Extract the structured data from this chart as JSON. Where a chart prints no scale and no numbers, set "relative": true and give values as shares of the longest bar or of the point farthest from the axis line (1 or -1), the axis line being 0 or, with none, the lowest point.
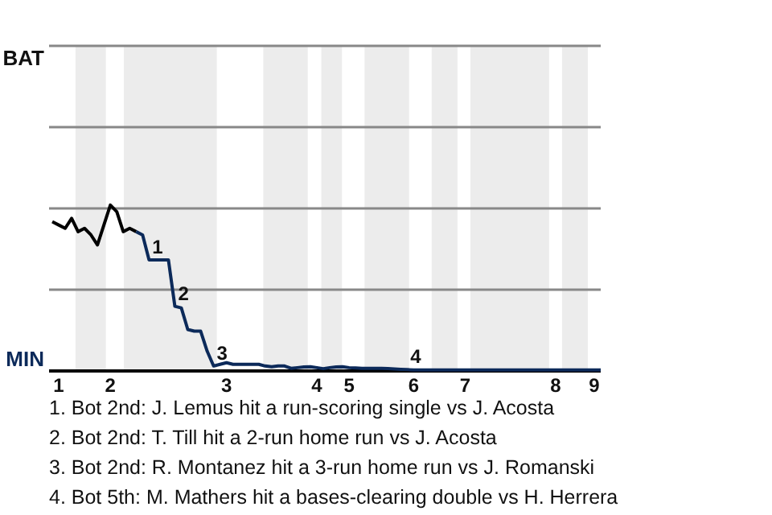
{
  "chart_data": {
    "type": "line",
    "relative": true,
    "categories": [
      null,
      "1",
      null,
      null,
      null,
      null,
      null,
      null,
      null,
      "2",
      null,
      null,
      null,
      null,
      null,
      null,
      null,
      null,
      null,
      null,
      null,
      null,
      null,
      null,
      null,
      null,
      null,
      "3",
      null,
      null,
      null,
      null,
      null,
      null,
      null,
      null,
      null,
      null,
      null,
      null,
      null,
      "4",
      null,
      null,
      null,
      null,
      "5",
      null,
      null,
      null,
      null,
      null,
      null,
      null,
      null,
      null,
      "6",
      null,
      null,
      null,
      null,
      null,
      null,
      null,
      "7",
      null,
      null,
      null,
      null,
      null,
      null,
      null,
      null,
      null,
      null,
      null,
      null,
      null,
      "8",
      null,
      null,
      null,
      null,
      null,
      "9",
      null
    ],
    "grid": false,
    "marker": "none",
    "line_style": "solid",
    "series": [
      {
        "color": "#000000",
        "values": [
          0.9,
          0.88,
          0.86,
          0.92,
          0.84,
          0.86,
          0.82,
          0.76,
          0.88,
          1,
          0.96,
          0.84,
          0.86,
          0.84,
          null,
          null,
          null,
          null,
          null,
          null,
          null,
          null,
          null,
          null,
          null,
          null,
          null,
          null,
          null,
          null,
          null,
          null,
          null,
          null,
          null,
          null,
          null,
          null,
          null,
          null,
          null,
          null,
          null,
          null,
          null,
          null,
          null,
          null,
          null,
          null,
          null,
          null,
          null,
          null,
          null,
          null,
          null,
          null,
          null,
          null,
          null,
          null,
          null,
          null,
          null,
          null,
          null,
          null,
          null,
          null,
          null,
          null,
          null,
          null,
          null,
          null,
          null,
          null,
          null,
          null,
          null,
          null,
          null,
          null,
          null,
          null
        ]
      },
      {
        "color": "#0c2a5a",
        "values": [
          null,
          null,
          null,
          null,
          null,
          null,
          null,
          null,
          null,
          null,
          null,
          null,
          null,
          0.84,
          0.82,
          0.67,
          0.67,
          0.67,
          0.67,
          0.39,
          0.38,
          0.25,
          0.24,
          0.24,
          0.12,
          0.03,
          0.04,
          0.05,
          0.04,
          0.04,
          0.04,
          0.04,
          0.04,
          0.03,
          0.025,
          0.03,
          0.03,
          0.016,
          0.02,
          0.024,
          0.025,
          0.02,
          0.014,
          0.02,
          0.024,
          0.025,
          0.02,
          0.018,
          0.016,
          0.016,
          0.016,
          0.016,
          0.014,
          0.012,
          0.01,
          0.008,
          0.006,
          0.006,
          0.006,
          0.006,
          0.006,
          0.006,
          0.006,
          0.006,
          0.006,
          0.006,
          0.006,
          0.006,
          0.006,
          0.006,
          0.006,
          0.006,
          0.006,
          0.006,
          0.006,
          0.006,
          0.006,
          0.006,
          0.006,
          0.006,
          0.006,
          0.006,
          0.006,
          0.006,
          0.006,
          0.006
        ]
      }
    ],
    "ref_lines": [
      {
        "axis": "y",
        "value": 0.49,
        "color": "#888888"
      },
      {
        "axis": "y",
        "value": 0.98,
        "color": "#888888"
      },
      {
        "axis": "y",
        "value": 1.47,
        "color": "#888888"
      },
      {
        "axis": "y",
        "value": 1.96,
        "color": "#888888"
      }
    ],
    "annotations": [
      "BAT",
      "MIN",
      {
        "text": "1",
        "y": 0.67
      },
      {
        "text": "2",
        "y": 0.39
      },
      {
        "text": "3",
        "y": 0.03
      },
      {
        "text": "4",
        "y": 0.008
      },
      "1. Bot 2nd: J. Lemus hit a run-scoring single vs J. Acosta",
      "2. Bot 2nd: T. Till hit a 2-run home run vs J. Acosta",
      "3. Bot 2nd: R. Montanez hit a 3-run home run vs J. Romanski",
      "4. Bot 5th: M. Mathers hit a bases-clearing double vs H. Herrera"
    ]
  }
}
